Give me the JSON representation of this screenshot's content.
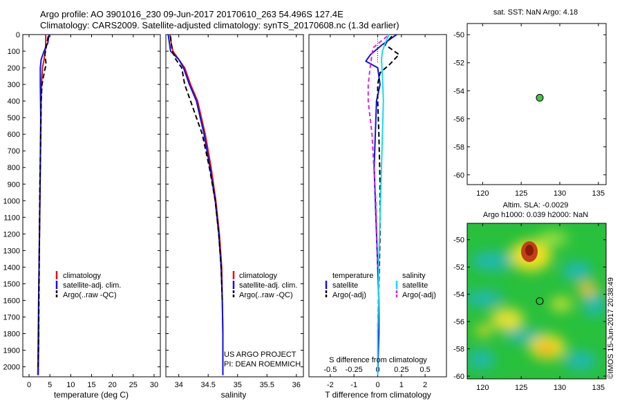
{
  "header": {
    "title_line1": "Argo profile: AO 3901016_230 09-Jun-2017 20170610_263 54.496S 127.4E",
    "title_line2": "Climatology: CARS2009. Satellite-adjusted climatology: synTS_20170608.nc (1.3d earlier)"
  },
  "colors": {
    "climatology": "#e01010",
    "satellite": "#1010e0",
    "argo": "#000000",
    "sat_cyan": "#18d8f0",
    "argo_magenta": "#e020e0",
    "marker": "#40c840"
  },
  "chart_data": [
    {
      "type": "line",
      "name": "temperature-profile",
      "xlabel": "temperature (deg C)",
      "xlim": [
        -1.5,
        31.5
      ],
      "ylim": [
        0,
        2060
      ],
      "xticks": [
        0,
        5,
        10,
        15,
        20,
        25,
        30
      ],
      "yticks": [
        0,
        100,
        200,
        300,
        400,
        500,
        600,
        700,
        800,
        900,
        1000,
        1100,
        1200,
        1300,
        1400,
        1500,
        1600,
        1700,
        1800,
        1900,
        2000
      ],
      "legend": [
        "climatology",
        "satellite-adj. clim.",
        "Argo(..raw -QC)"
      ],
      "series": [
        {
          "name": "climatology",
          "color": "#e01010",
          "x": [
            4.0,
            4.0,
            3.9,
            3.6,
            3.2,
            3.0,
            2.9,
            2.8,
            2.7,
            2.6,
            2.5,
            2.4,
            2.3,
            2.2,
            2.1
          ],
          "y": [
            0,
            50,
            100,
            150,
            200,
            300,
            400,
            600,
            800,
            1000,
            1200,
            1400,
            1600,
            1800,
            2050
          ]
        },
        {
          "name": "satellite-adj. clim.",
          "color": "#1010e0",
          "x": [
            4.8,
            4.5,
            3.6,
            2.9,
            2.7,
            2.7,
            2.8,
            2.7,
            2.6,
            2.5,
            2.4,
            2.3,
            2.3,
            2.2
          ],
          "y": [
            0,
            50,
            100,
            150,
            200,
            300,
            500,
            800,
            1000,
            1200,
            1400,
            1600,
            1800,
            2050
          ]
        },
        {
          "name": "Argo(..raw -QC)",
          "color": "#000000",
          "x": [
            4.6,
            4.3,
            3.8,
            4.1,
            3.7,
            3.1,
            2.9,
            2.8,
            2.6,
            2.5,
            2.4,
            2.3,
            2.2
          ],
          "y": [
            10,
            50,
            120,
            180,
            220,
            300,
            400,
            600,
            900,
            1200,
            1500,
            1800,
            2000
          ]
        }
      ]
    },
    {
      "type": "line",
      "name": "salinity-profile",
      "xlabel": "salinity",
      "xlim": [
        33.78,
        36.12
      ],
      "ylim": [
        0,
        2060
      ],
      "xticks": [
        34,
        34.5,
        35,
        35.5,
        36
      ],
      "legend": [
        "climatology",
        "satellite-adj. clim.",
        "Argo(..raw -QC)"
      ],
      "annotation": [
        "US ARGO PROJECT",
        "PI: DEAN ROEMMICH"
      ],
      "series": [
        {
          "name": "climatology",
          "color": "#e01010",
          "x": [
            33.85,
            33.87,
            33.9,
            34.0,
            34.1,
            34.2,
            34.32,
            34.45,
            34.55,
            34.63,
            34.69,
            34.73,
            34.74,
            34.75,
            34.75
          ],
          "y": [
            0,
            50,
            100,
            150,
            200,
            300,
            400,
            600,
            800,
            1000,
            1200,
            1400,
            1600,
            1800,
            2050
          ]
        },
        {
          "name": "satellite-adj. clim.",
          "color": "#1010e0",
          "x": [
            33.82,
            33.84,
            33.86,
            34.0,
            34.08,
            34.18,
            34.3,
            34.43,
            34.53,
            34.62,
            34.68,
            34.72,
            34.74,
            34.75,
            34.75
          ],
          "y": [
            0,
            50,
            100,
            150,
            200,
            300,
            400,
            600,
            800,
            1000,
            1200,
            1400,
            1600,
            1800,
            2050
          ]
        },
        {
          "name": "Argo(..raw -QC)",
          "color": "#000000",
          "x": [
            33.86,
            33.87,
            33.89,
            33.95,
            34.05,
            34.1,
            34.2,
            34.4,
            34.52,
            34.62,
            34.68,
            34.72,
            34.74
          ],
          "y": [
            10,
            50,
            100,
            150,
            200,
            300,
            400,
            600,
            800,
            1000,
            1200,
            1400,
            1600
          ]
        }
      ]
    },
    {
      "type": "line",
      "name": "difference-profile",
      "xlabel": "T difference from climatology",
      "xlabel_top": "S difference from climatology",
      "xlim": [
        -2.9,
        2.9
      ],
      "ylim": [
        0,
        2060
      ],
      "xticks": [
        -2,
        -1,
        0,
        1,
        2
      ],
      "xticks_top": [
        -0.5,
        -0.25,
        0,
        0.25,
        0.5
      ],
      "legend_titles": [
        "temperature",
        "salinity"
      ],
      "legend": [
        "satellite",
        "Argo(-adj)",
        "satellite",
        "Argo(-adj)"
      ],
      "series": [
        {
          "name": "T satellite",
          "color": "#1010e0",
          "x": [
            0.8,
            0.2,
            -0.3,
            -0.5,
            0.0,
            0.1,
            -0.05,
            -0.1,
            -0.15,
            -0.1,
            -0.05,
            0.0,
            0.05,
            0.05,
            0.0
          ],
          "y": [
            0,
            60,
            120,
            160,
            200,
            300,
            400,
            600,
            800,
            1000,
            1200,
            1400,
            1600,
            1800,
            2050
          ]
        },
        {
          "name": "T Argo(-adj)",
          "color": "#000000",
          "x": [
            0.6,
            0.3,
            0.9,
            0.5,
            0.1,
            0.0,
            0.0,
            0.05,
            0.1,
            0.1,
            0.05,
            0.0,
            0.0
          ],
          "y": [
            10,
            60,
            120,
            180,
            230,
            300,
            400,
            600,
            900,
            1200,
            1500,
            1800,
            2000
          ]
        },
        {
          "name": "S satellite",
          "color": "#18d8f0",
          "x": [
            0.12,
            0.08,
            0.05,
            0.04,
            0.05,
            0.06,
            0.05,
            0.04,
            0.03,
            0.02,
            0.01,
            0.01,
            0.0,
            0.0
          ],
          "y": [
            0,
            50,
            100,
            150,
            250,
            400,
            600,
            800,
            1000,
            1200,
            1400,
            1600,
            1800,
            2050
          ]
        },
        {
          "name": "S Argo(-adj)",
          "color": "#e020e0",
          "x": [
            0.1,
            -0.05,
            -0.08,
            -0.1,
            -0.1,
            -0.06,
            -0.04,
            -0.02,
            -0.01,
            0.0
          ],
          "y": [
            10,
            80,
            200,
            300,
            400,
            600,
            800,
            1000,
            1200,
            1400
          ]
        }
      ]
    },
    {
      "type": "scatter",
      "name": "sst-map",
      "title": "sat. SST: NaN Argo: 4.18",
      "xlim": [
        118,
        136
      ],
      "ylim": [
        -60.7,
        -49.2
      ],
      "xticks": [
        120,
        125,
        130,
        135
      ],
      "yticks": [
        -50,
        -52,
        -54,
        -56,
        -58,
        -60
      ],
      "points": [
        {
          "lon": 127.4,
          "lat": -54.5
        }
      ]
    },
    {
      "type": "heatmap",
      "name": "sla-map",
      "title_line1": "Altim. SLA: -0.0029",
      "title_line2": "Argo h1000: 0.039 h2000: NaN",
      "xlim": [
        118,
        136
      ],
      "ylim": [
        -60.2,
        -48.8
      ],
      "xticks": [
        120,
        125,
        130,
        135
      ],
      "yticks": [
        -50,
        -52,
        -54,
        -56,
        -58,
        -60
      ],
      "points": [
        {
          "lon": 127.4,
          "lat": -54.5
        }
      ],
      "credit": "©IMOS 15-Jun-2017 20:38:49"
    }
  ]
}
